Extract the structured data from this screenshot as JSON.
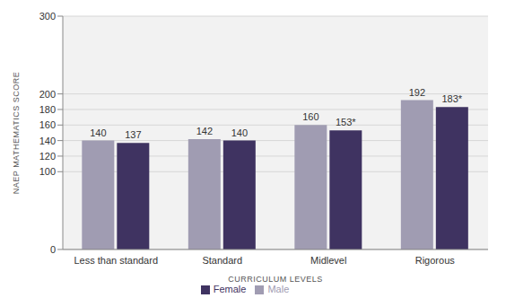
{
  "chart_data": {
    "type": "bar",
    "y_label": "NAEP MATHEMATICS SCORE",
    "x_label": "CURRICULUM LEVELS",
    "categories": [
      "Less than standard",
      "Standard",
      "Midlevel",
      "Rigorous"
    ],
    "series": [
      {
        "name": "Male",
        "color": "#a09cb2",
        "values": [
          140,
          142,
          160,
          192
        ]
      },
      {
        "name": "Female",
        "color": "#3f3361",
        "values": [
          137,
          140,
          153,
          183
        ],
        "value_labels": [
          "137",
          "140",
          "153*",
          "183*"
        ]
      }
    ],
    "ylim": [
      0,
      300
    ],
    "yticks": [
      0,
      100,
      120,
      140,
      160,
      180,
      200,
      300
    ],
    "grid": true,
    "legend": "bottom",
    "data_labels": true
  }
}
